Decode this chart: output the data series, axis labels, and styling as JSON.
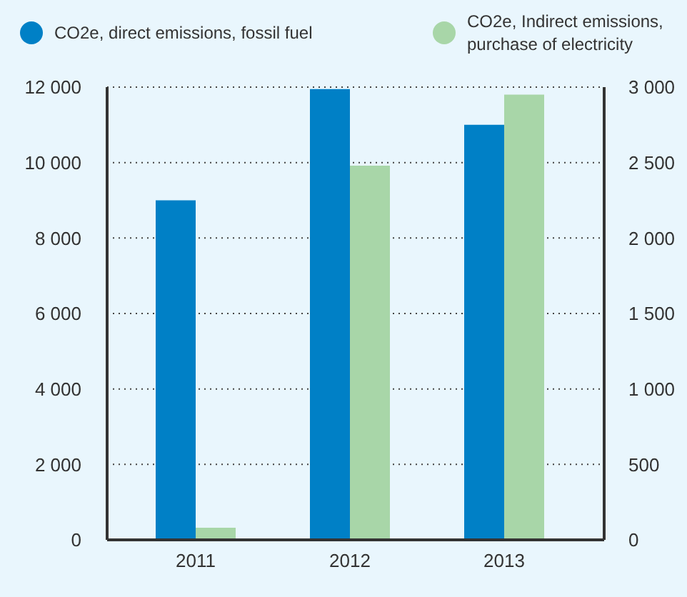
{
  "chart_data": {
    "type": "bar",
    "categories": [
      "2011",
      "2012",
      "2013"
    ],
    "series": [
      {
        "name": "CO2e, direct emissions, fossil fuel",
        "color": "#0080c6",
        "values": [
          9000,
          11950,
          11000
        ]
      },
      {
        "name": "CO2e, Indirect emissions, purchase of electricity",
        "color": "#a8d6a8",
        "values": [
          80,
          2480,
          2950
        ],
        "axis": "y2"
      }
    ],
    "ylim": [
      0,
      12000
    ],
    "yticks": [
      0,
      {
        "value": 2000,
        "label": "2 000"
      },
      {
        "value": 4000,
        "label": "4 000"
      },
      {
        "value": 6000,
        "label": "6 000"
      },
      {
        "value": 8000,
        "label": "8 000"
      },
      {
        "value": 10000,
        "label": "10 000"
      },
      {
        "value": 12000,
        "label": "12 000"
      }
    ],
    "y2lim": [
      0,
      3000
    ],
    "y2ticks": [
      0,
      500,
      {
        "value": 1000,
        "label": "1 000"
      },
      {
        "value": 1500,
        "label": "1 500"
      },
      {
        "value": 2000,
        "label": "2 000"
      },
      {
        "value": 2500,
        "label": "2 500"
      },
      {
        "value": 3000,
        "label": "3 000"
      }
    ],
    "grid": "y",
    "legend": "top"
  }
}
